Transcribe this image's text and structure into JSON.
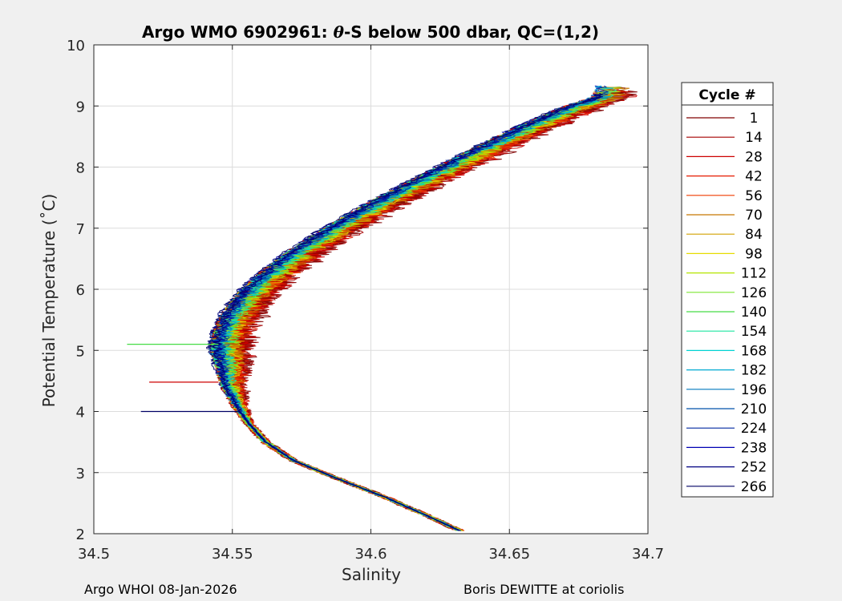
{
  "chart_data": {
    "type": "line",
    "title_prefix": "Argo WMO 6902961: ",
    "title_theta": "θ",
    "title_suffix": "-S below 500 dbar,  QC=(1,2)",
    "xlabel": "Salinity",
    "ylabel": "Potential Temperature (˚C)",
    "xlim": [
      34.5,
      34.7
    ],
    "ylim": [
      2,
      10
    ],
    "xticks": [
      34.5,
      34.55,
      34.6,
      34.65,
      34.7
    ],
    "xtick_labels": [
      "34.5",
      "34.55",
      "34.6",
      "34.65",
      "34.7"
    ],
    "yticks": [
      2,
      3,
      4,
      5,
      6,
      7,
      8,
      9,
      10
    ],
    "ytick_labels": [
      "2",
      "3",
      "4",
      "5",
      "6",
      "7",
      "8",
      "9",
      "10"
    ],
    "grid": true,
    "legend_title": "Cycle #",
    "legend_position": "right-outside",
    "legend": [
      {
        "label": "1",
        "color": "#800000"
      },
      {
        "label": "14",
        "color": "#a50000"
      },
      {
        "label": "28",
        "color": "#cd0000"
      },
      {
        "label": "42",
        "color": "#e61a00"
      },
      {
        "label": "56",
        "color": "#ef3c00"
      },
      {
        "label": "70",
        "color": "#c87800"
      },
      {
        "label": "84",
        "color": "#d2a000"
      },
      {
        "label": "98",
        "color": "#e6dc00"
      },
      {
        "label": "112",
        "color": "#b4e600"
      },
      {
        "label": "126",
        "color": "#7de632"
      },
      {
        "label": "140",
        "color": "#46dc46"
      },
      {
        "label": "154",
        "color": "#1ee6a0"
      },
      {
        "label": "168",
        "color": "#00d2d2"
      },
      {
        "label": "182",
        "color": "#00aad2"
      },
      {
        "label": "196",
        "color": "#0078be"
      },
      {
        "label": "210",
        "color": "#0050aa"
      },
      {
        "label": "224",
        "color": "#0028a0"
      },
      {
        "label": "238",
        "color": "#0000b4"
      },
      {
        "label": "252",
        "color": "#000082"
      },
      {
        "label": "266",
        "color": "#000064"
      }
    ],
    "mean_profile": [
      {
        "s": 34.632,
        "t": 2.05
      },
      {
        "s": 34.62,
        "t": 2.3
      },
      {
        "s": 34.605,
        "t": 2.6
      },
      {
        "s": 34.588,
        "t": 2.9
      },
      {
        "s": 34.572,
        "t": 3.2
      },
      {
        "s": 34.562,
        "t": 3.5
      },
      {
        "s": 34.556,
        "t": 3.8
      },
      {
        "s": 34.552,
        "t": 4.1
      },
      {
        "s": 34.549,
        "t": 4.4
      },
      {
        "s": 34.548,
        "t": 4.7
      },
      {
        "s": 34.547,
        "t": 5.0
      },
      {
        "s": 34.548,
        "t": 5.3
      },
      {
        "s": 34.551,
        "t": 5.6
      },
      {
        "s": 34.556,
        "t": 5.9
      },
      {
        "s": 34.563,
        "t": 6.2
      },
      {
        "s": 34.574,
        "t": 6.6
      },
      {
        "s": 34.588,
        "t": 7.0
      },
      {
        "s": 34.603,
        "t": 7.4
      },
      {
        "s": 34.62,
        "t": 7.8
      },
      {
        "s": 34.637,
        "t": 8.2
      },
      {
        "s": 34.655,
        "t": 8.6
      },
      {
        "s": 34.672,
        "t": 8.95
      },
      {
        "s": 34.685,
        "t": 9.15
      }
    ],
    "spikes": [
      {
        "s1": 34.517,
        "s2": 34.553,
        "t": 4.0,
        "color": "#000064"
      },
      {
        "s1": 34.52,
        "s2": 34.545,
        "t": 4.48,
        "color": "#cd0000"
      },
      {
        "s1": 34.512,
        "s2": 34.545,
        "t": 5.1,
        "color": "#46dc46"
      }
    ]
  },
  "footer": {
    "left": "Argo WHOI 08-Jan-2026",
    "right": "Boris DEWITTE at coriolis"
  }
}
